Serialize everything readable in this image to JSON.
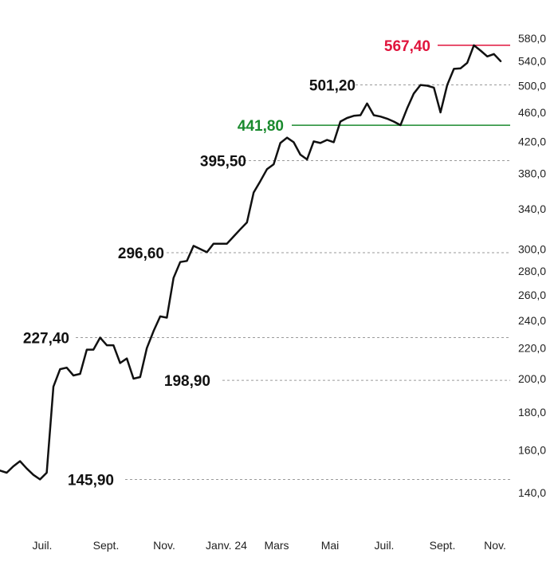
{
  "chart_data": {
    "type": "line",
    "y_scale": "log",
    "ylim": [
      130,
      600
    ],
    "grid": false,
    "x_tick_labels": [
      "Juil.",
      "Sept.",
      "Nov.",
      "Janv. 24",
      "Mars",
      "Mai",
      "Juil.",
      "Sept.",
      "Nov."
    ],
    "y_tick_values": [
      140,
      160,
      180,
      200,
      220,
      240,
      260,
      280,
      300,
      340,
      380,
      420,
      460,
      500,
      540,
      580
    ],
    "y_tick_labels": [
      "140,0",
      "160,0",
      "180,0",
      "200,0",
      "220,0",
      "240,0",
      "260,0",
      "280,0",
      "300,0",
      "340,0",
      "380,0",
      "420,0",
      "460,0",
      "500,0",
      "540,0",
      "580,0"
    ],
    "annotations": [
      {
        "label": "567,40",
        "value": 567.4,
        "color": "#e0143c",
        "style": "solid"
      },
      {
        "label": "501,20",
        "value": 501.2,
        "color": "#111111",
        "style": "dashed"
      },
      {
        "label": "441,80",
        "value": 441.8,
        "color": "#1a8a2e",
        "style": "solid"
      },
      {
        "label": "395,50",
        "value": 395.5,
        "color": "#111111",
        "style": "dashed"
      },
      {
        "label": "296,60",
        "value": 296.6,
        "color": "#111111",
        "style": "dashed"
      },
      {
        "label": "227,40",
        "value": 227.4,
        "color": "#111111",
        "style": "dashed"
      },
      {
        "label": "198,90",
        "value": 198.9,
        "color": "#111111",
        "style": "dashed"
      },
      {
        "label": "145,90",
        "value": 145.9,
        "color": "#111111",
        "style": "dashed"
      }
    ],
    "series": [
      {
        "values": [
          150.0,
          149.0,
          152.0,
          154.5,
          151.0,
          148.0,
          145.9,
          149.0,
          195.0,
          206.0,
          207.0,
          202.0,
          203.0,
          219.0,
          219.0,
          227.4,
          222.0,
          222.0,
          210.0,
          213.0,
          200.0,
          201.0,
          220.0,
          232.0,
          243.0,
          242.0,
          274.0,
          288.0,
          289.0,
          303.0,
          300.0,
          297.0,
          305.0,
          305.0,
          305.0,
          312.0,
          319.0,
          326.0,
          358.0,
          371.0,
          385.0,
          391.0,
          418.0,
          425.0,
          419.0,
          403.0,
          397.0,
          420.0,
          418.0,
          422.0,
          419.0,
          447.0,
          452.0,
          455.0,
          456.0,
          473.0,
          456.0,
          454.0,
          451.0,
          447.0,
          442.0,
          466.0,
          488.0,
          501.2,
          500.0,
          497.0,
          460.0,
          501.0,
          527.0,
          528.0,
          537.0,
          567.4,
          558.0,
          548.0,
          552.0,
          540.0
        ]
      }
    ]
  }
}
